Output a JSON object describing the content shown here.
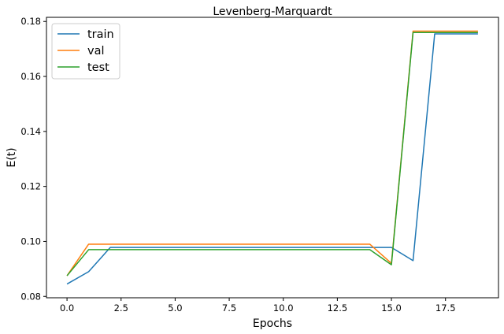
{
  "chart_data": {
    "type": "line",
    "title": "Levenberg-Marquardt",
    "xlabel": "Epochs",
    "ylabel": "E(t)",
    "xlim": [
      -0.95,
      19.95
    ],
    "ylim": [
      0.0795,
      0.1815
    ],
    "xticks": [
      0.0,
      2.5,
      5.0,
      7.5,
      10.0,
      12.5,
      15.0,
      17.5
    ],
    "xtick_labels": [
      "0.0",
      "2.5",
      "5.0",
      "7.5",
      "10.0",
      "12.5",
      "15.0",
      "17.5"
    ],
    "yticks": [
      0.08,
      0.1,
      0.12,
      0.14,
      0.16,
      0.18
    ],
    "ytick_labels": [
      "0.08",
      "0.10",
      "0.12",
      "0.14",
      "0.16",
      "0.18"
    ],
    "grid": false,
    "legend_position": "top-left",
    "x": [
      0,
      1,
      2,
      3,
      4,
      5,
      6,
      7,
      8,
      9,
      10,
      11,
      12,
      13,
      14,
      15,
      16,
      17,
      18,
      19
    ],
    "series": [
      {
        "name": "train",
        "color": "#1f77b4",
        "values": [
          0.0845,
          0.089,
          0.0978,
          0.0978,
          0.0978,
          0.0978,
          0.0978,
          0.0978,
          0.0978,
          0.0978,
          0.0978,
          0.0978,
          0.0978,
          0.0978,
          0.0978,
          0.0978,
          0.093,
          0.1755,
          0.1755,
          0.1755
        ]
      },
      {
        "name": "val",
        "color": "#ff7f0e",
        "values": [
          0.0875,
          0.099,
          0.099,
          0.099,
          0.099,
          0.099,
          0.099,
          0.099,
          0.099,
          0.099,
          0.099,
          0.099,
          0.099,
          0.099,
          0.099,
          0.092,
          0.1765,
          0.1765,
          0.1765,
          0.1765
        ]
      },
      {
        "name": "test",
        "color": "#2ca02c",
        "values": [
          0.0875,
          0.097,
          0.097,
          0.097,
          0.097,
          0.097,
          0.097,
          0.097,
          0.097,
          0.097,
          0.097,
          0.097,
          0.097,
          0.097,
          0.097,
          0.0915,
          0.176,
          0.176,
          0.176,
          0.176
        ]
      }
    ]
  }
}
